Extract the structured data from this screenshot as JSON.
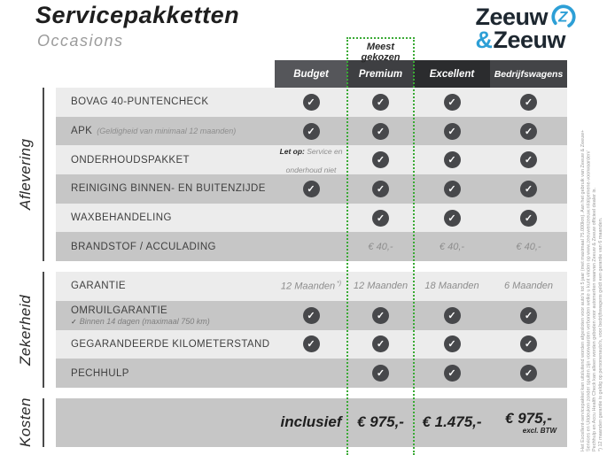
{
  "header": {
    "title": "Servicepakketten",
    "subtitle": "Occasions",
    "logo": {
      "word1": "Zeeuw",
      "amp": "&",
      "word2": "Zeeuw"
    }
  },
  "table": {
    "most_chosen": "Meest gekozen",
    "columns": [
      "Budget",
      "Premium",
      "Excellent",
      "Bedrijfswagens"
    ],
    "sections": [
      {
        "name": "Aflevering",
        "rows": [
          {
            "label": "BOVAG 40-PUNTENCHECK",
            "cells": [
              {
                "t": "check"
              },
              {
                "t": "check"
              },
              {
                "t": "check"
              },
              {
                "t": "check"
              }
            ]
          },
          {
            "label": "APK",
            "sub_inline": "(Geldigheid van minimaal 12 maanden)",
            "cells": [
              {
                "t": "check"
              },
              {
                "t": "check"
              },
              {
                "t": "check"
              },
              {
                "t": "check"
              }
            ]
          },
          {
            "label": "ONDERHOUDSPAKKET",
            "cells": [
              {
                "t": "note",
                "b": "Let op:",
                "v": "Service en onderhoud niet"
              },
              {
                "t": "check"
              },
              {
                "t": "check"
              },
              {
                "t": "check"
              }
            ]
          },
          {
            "label": "REINIGING BINNEN- EN BUITENZIJDE",
            "cells": [
              {
                "t": "check"
              },
              {
                "t": "check"
              },
              {
                "t": "check"
              },
              {
                "t": "check"
              }
            ]
          },
          {
            "label": "WAXBEHANDELING",
            "cells": [
              {
                "t": ""
              },
              {
                "t": "check"
              },
              {
                "t": "check"
              },
              {
                "t": "check"
              }
            ]
          },
          {
            "label": "BRANDSTOF / ACCULADING",
            "cells": [
              {
                "t": ""
              },
              {
                "t": "txt",
                "v": "€ 40,-"
              },
              {
                "t": "txt",
                "v": "€ 40,-"
              },
              {
                "t": "txt",
                "v": "€ 40,-"
              }
            ]
          }
        ]
      },
      {
        "name": "Zekerheid",
        "rows": [
          {
            "label": "GARANTIE",
            "cells": [
              {
                "t": "txt",
                "v": "12 Maanden",
                "sup": "*)"
              },
              {
                "t": "txt",
                "v": "12 Maanden"
              },
              {
                "t": "txt",
                "v": "18 Maanden"
              },
              {
                "t": "txt",
                "v": "6 Maanden"
              }
            ]
          },
          {
            "label": "OMRUILGARANTIE",
            "sub_check": "Binnen 14 dagen (maximaal 750 km)",
            "cells": [
              {
                "t": "check"
              },
              {
                "t": "check"
              },
              {
                "t": "check"
              },
              {
                "t": "check"
              }
            ]
          },
          {
            "label": "GEGARANDEERDE KILOMETERSTAND",
            "cells": [
              {
                "t": "check"
              },
              {
                "t": "check"
              },
              {
                "t": "check"
              },
              {
                "t": "check"
              }
            ]
          },
          {
            "label": "PECHHULP",
            "cells": [
              {
                "t": ""
              },
              {
                "t": "check"
              },
              {
                "t": "check"
              },
              {
                "t": "check"
              }
            ]
          }
        ]
      },
      {
        "name": "Kosten",
        "rows": [
          {
            "label": "",
            "cells": [
              {
                "t": "price",
                "v": "inclusief"
              },
              {
                "t": "price",
                "v": "€ 975,-"
              },
              {
                "t": "price",
                "v": "€ 1.475,-"
              },
              {
                "t": "price",
                "v": "€ 975,-",
                "sub": "excl. BTW"
              }
            ]
          }
        ]
      }
    ]
  },
  "fine_print": [
    "Het Excellent-servicepakket kan uitsluitend worden afgesloten voor auto's tot 5 jaar (met maximaal 75.000km). Aan het gebruik van Zeeuw & Zeeuw+",
    "Services en Uitdeuken zonder spuiten zijn voorwaarden verbonden welke u kunt vinden op www.zeeuwenzeeuw.nl/algemene-voorwaarden/",
    "Pechhulp en Accu Health Check kan alleen worden geboden voor automerken waarvan Zeeuw & Zeeuw officieel dealer is.",
    "*) 12 maanden garantie is geldig op personenauto's, voor bedrijfswagens geldt een garantie van 6 maanden."
  ],
  "colors": {
    "accent_green": "#3aaa35",
    "brand_blue": "#2d9fd6"
  }
}
